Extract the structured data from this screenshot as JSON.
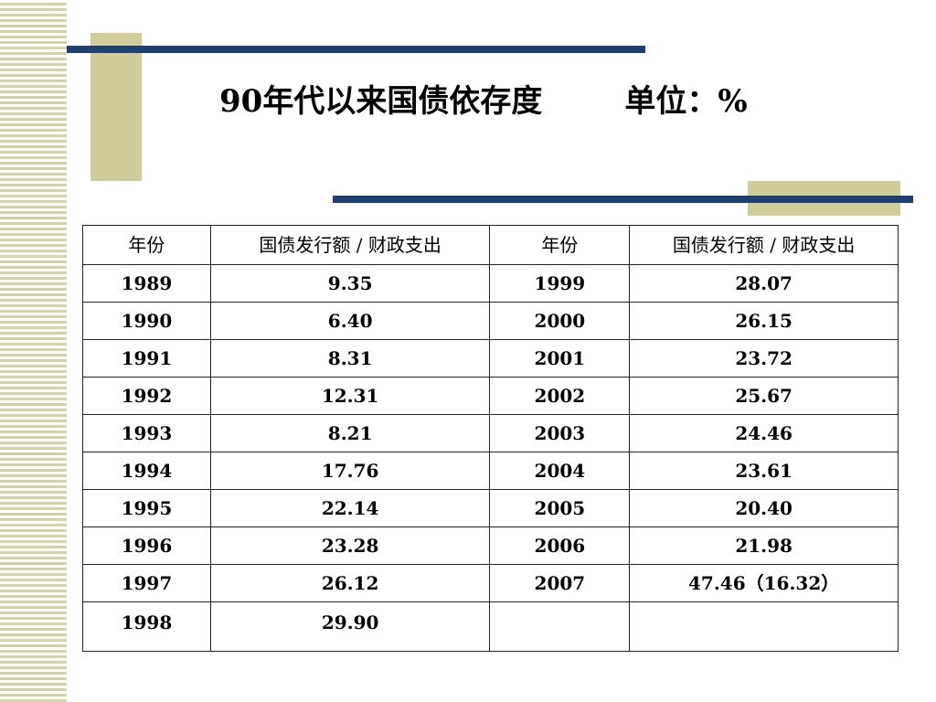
{
  "slide": {
    "title": "90年代以来国债依存度",
    "unit": "单位：%"
  },
  "table": {
    "headers": [
      "年份",
      "国债发行额 / 财政支出",
      "年份",
      "国债发行额 / 财政支出"
    ],
    "rows": [
      [
        "1989",
        "9.35",
        "1999",
        "28.07"
      ],
      [
        "1990",
        "6.40",
        "2000",
        "26.15"
      ],
      [
        "1991",
        "8.31",
        "2001",
        "23.72"
      ],
      [
        "1992",
        "12.31",
        "2002",
        "25.67"
      ],
      [
        "1993",
        "8.21",
        "2003",
        "24.46"
      ],
      [
        "1994",
        "17.76",
        "2004",
        "23.61"
      ],
      [
        "1995",
        "22.14",
        "2005",
        "20.40"
      ],
      [
        "1996",
        "23.28",
        "2006",
        "21.98"
      ],
      [
        "1997",
        "26.12",
        "2007",
        "47.46（16.32）"
      ],
      [
        "1998",
        "29.90",
        "",
        ""
      ]
    ]
  }
}
